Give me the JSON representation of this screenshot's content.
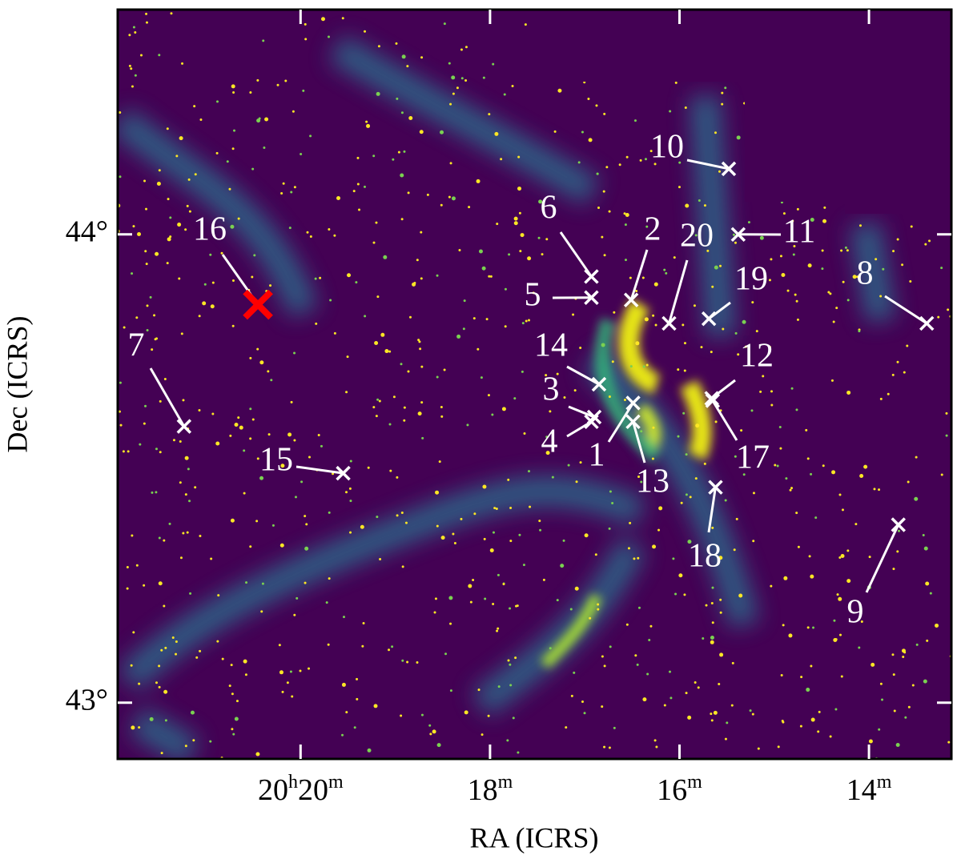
{
  "chart_data": {
    "type": "scatter",
    "xlabel": "RA (ICRS)",
    "ylabel": "Dec (ICRS)",
    "labels": [
      "1",
      "2",
      "3",
      "4",
      "5",
      "6",
      "7",
      "8",
      "9",
      "10",
      "11",
      "12",
      "13",
      "14",
      "15",
      "16",
      "17",
      "18",
      "19",
      "20"
    ],
    "x": [
      16.49,
      16.51,
      16.9,
      16.93,
      16.93,
      16.93,
      21.23,
      13.39,
      13.69,
      15.48,
      15.38,
      15.66,
      16.49,
      16.85,
      19.55,
      20.45,
      15.65,
      15.62,
      15.69,
      16.11
    ],
    "y": [
      43.64,
      43.86,
      43.61,
      43.6,
      43.865,
      43.91,
      43.59,
      43.81,
      43.38,
      44.14,
      44.0,
      43.65,
      43.6,
      43.68,
      43.49,
      43.85,
      43.645,
      43.46,
      43.82,
      43.81
    ],
    "colors": [
      "#ffffff",
      "#ffffff",
      "#ffffff",
      "#ffffff",
      "#ffffff",
      "#ffffff",
      "#ffffff",
      "#ffffff",
      "#ffffff",
      "#ffffff",
      "#ffffff",
      "#ffffff",
      "#ffffff",
      "#ffffff",
      "#ffffff",
      "#ff0000",
      "#ffffff",
      "#ffffff",
      "#ffffff",
      "#ffffff"
    ],
    "marker_sizes": [
      8,
      8,
      8,
      8,
      8,
      8,
      8,
      8,
      8,
      8,
      8,
      8,
      8,
      8,
      8,
      16,
      8,
      8,
      8,
      8
    ],
    "xlim": [
      21.93,
      13.13
    ],
    "xticks": [
      {
        "value": 20,
        "label": "20h20m"
      },
      {
        "value": 18,
        "label": "18m"
      },
      {
        "value": 16,
        "label": "16m"
      },
      {
        "value": 14,
        "label": "14m"
      }
    ],
    "ylim": [
      42.88,
      44.48
    ],
    "yticks": [
      {
        "value": 43,
        "label": "43°"
      },
      {
        "value": 44,
        "label": "44°"
      }
    ]
  }
}
